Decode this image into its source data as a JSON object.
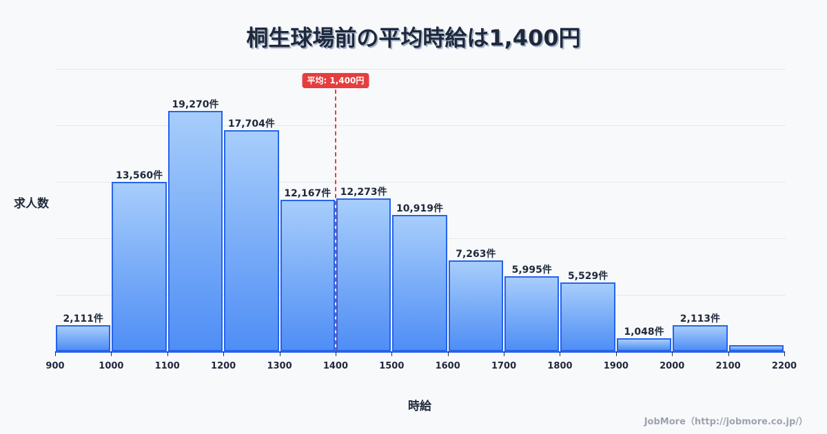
{
  "title": "桐生球場前の平均時給は1,400円",
  "average_badge": "平均: 1,400円",
  "y_axis_label": "求人数",
  "x_axis_label": "時給",
  "credit": "JobMore（http://jobmore.co.jp/）",
  "colors": {
    "bar_fill_top": "#a7cdfb",
    "bar_fill_bottom": "#4f8ef5",
    "bar_border": "#2563eb",
    "average_line": "#e53e3e",
    "text": "#1e293b",
    "background": "#f8f9fb"
  },
  "chart_data": {
    "type": "bar",
    "title": "桐生球場前の平均時給は1,400円",
    "xlabel": "時給",
    "ylabel": "求人数",
    "bins": [
      {
        "from": 900,
        "to": 1000,
        "value": 2111,
        "label": "2,111件"
      },
      {
        "from": 1000,
        "to": 1100,
        "value": 13560,
        "label": "13,560件"
      },
      {
        "from": 1100,
        "to": 1200,
        "value": 19270,
        "label": "19,270件"
      },
      {
        "from": 1200,
        "to": 1300,
        "value": 17704,
        "label": "17,704件"
      },
      {
        "from": 1300,
        "to": 1400,
        "value": 12167,
        "label": "12,167件"
      },
      {
        "from": 1400,
        "to": 1500,
        "value": 12273,
        "label": "12,273件"
      },
      {
        "from": 1500,
        "to": 1600,
        "value": 10919,
        "label": "10,919件"
      },
      {
        "from": 1600,
        "to": 1700,
        "value": 7263,
        "label": "7,263件"
      },
      {
        "from": 1700,
        "to": 1800,
        "value": 5995,
        "label": "5,995件"
      },
      {
        "from": 1800,
        "to": 1900,
        "value": 5529,
        "label": "5,529件"
      },
      {
        "from": 1900,
        "to": 2000,
        "value": 1048,
        "label": "1,048件"
      },
      {
        "from": 2000,
        "to": 2100,
        "value": 2113,
        "label": "2,113件"
      },
      {
        "from": 2100,
        "to": 2200,
        "value": 500,
        "label": ""
      }
    ],
    "categories": [
      "900-1000",
      "1000-1100",
      "1100-1200",
      "1200-1300",
      "1300-1400",
      "1400-1500",
      "1500-1600",
      "1600-1700",
      "1700-1800",
      "1800-1900",
      "1900-2000",
      "2000-2100",
      "2100-2200"
    ],
    "values": [
      2111,
      13560,
      19270,
      17704,
      12167,
      12273,
      10919,
      7263,
      5995,
      5529,
      1048,
      2113,
      500
    ],
    "x_ticks": [
      "900",
      "1000",
      "1100",
      "1200",
      "1300",
      "1400",
      "1500",
      "1600",
      "1700",
      "1800",
      "1900",
      "2000",
      "2100",
      "2200"
    ],
    "xlim": [
      900,
      2200
    ],
    "ylim": [
      0,
      22640
    ],
    "grid": true,
    "grid_lines": 5,
    "annotations": [
      {
        "type": "vline",
        "x": 1400,
        "label": "平均: 1,400円",
        "style": "dashed",
        "color": "#e53e3e"
      }
    ],
    "legend": null
  }
}
